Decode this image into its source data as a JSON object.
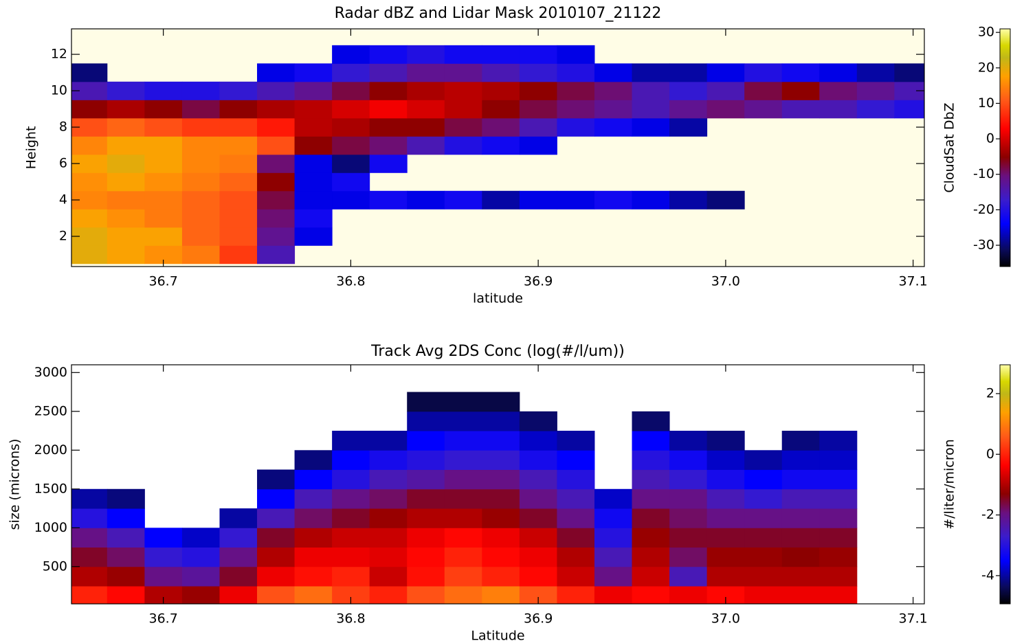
{
  "chart_data": [
    {
      "type": "heatmap",
      "title": "Radar dBZ and Lidar Mask 2010107_21122",
      "xlabel": "latitude",
      "ylabel": "Height",
      "colorbar_label": "CloudSat DbZ",
      "background": "#fffde6",
      "xlim": [
        36.651,
        37.106
      ],
      "xticks": [
        36.7,
        36.8,
        36.9,
        {
          "value": 37,
          "label": "37.0"
        },
        37.1
      ],
      "ylim": [
        0.34,
        13.4
      ],
      "yticks": [
        2,
        4,
        6,
        8,
        10,
        12
      ],
      "clim": [
        -36,
        31
      ],
      "cticks": [
        -30,
        -20,
        -10,
        0,
        10,
        20,
        30
      ],
      "x": [
        36.66,
        36.68,
        36.7,
        36.72,
        36.74,
        36.76,
        36.78,
        36.8,
        36.82,
        36.84,
        36.86,
        36.88,
        36.9,
        36.92,
        36.94,
        36.96,
        36.98,
        37.0,
        37.02,
        37.04,
        37.06,
        37.08,
        37.1
      ],
      "y": [
        1,
        2,
        3,
        4,
        5,
        6,
        7,
        8,
        9,
        10,
        11,
        12
      ],
      "z": [
        [
          20,
          18,
          16,
          14,
          8,
          -15,
          null,
          null,
          null,
          null,
          null,
          null,
          null,
          null,
          null,
          null,
          null,
          null,
          null,
          null,
          null,
          null,
          null
        ],
        [
          20,
          18,
          18,
          12,
          10,
          -12,
          -25,
          null,
          null,
          null,
          null,
          null,
          null,
          null,
          null,
          null,
          null,
          null,
          null,
          null,
          null,
          null,
          null
        ],
        [
          18,
          16,
          14,
          12,
          10,
          -10,
          -22,
          null,
          null,
          null,
          null,
          null,
          null,
          null,
          null,
          null,
          null,
          null,
          null,
          null,
          null,
          null,
          null
        ],
        [
          15,
          14,
          14,
          12,
          10,
          -8,
          -25,
          -25,
          -22,
          -25,
          -22,
          -28,
          -25,
          -25,
          -22,
          -25,
          -28,
          -30,
          null,
          null,
          null,
          null,
          null
        ],
        [
          16,
          18,
          16,
          14,
          12,
          -5,
          -25,
          -22,
          null,
          null,
          null,
          null,
          null,
          null,
          null,
          null,
          null,
          null,
          null,
          null,
          null,
          null,
          null
        ],
        [
          18,
          20,
          18,
          15,
          14,
          -10,
          -25,
          -30,
          -22,
          null,
          null,
          null,
          null,
          null,
          null,
          null,
          null,
          null,
          null,
          null,
          null,
          null,
          null
        ],
        [
          15,
          18,
          18,
          15,
          15,
          10,
          -5,
          -8,
          -10,
          -15,
          -20,
          -22,
          -25,
          null,
          null,
          null,
          null,
          null,
          null,
          null,
          null,
          null,
          null
        ],
        [
          10,
          12,
          10,
          8,
          8,
          5,
          -2,
          -3,
          -5,
          -5,
          -8,
          -10,
          -15,
          -20,
          -22,
          -25,
          -28,
          null,
          null,
          null,
          null,
          null,
          null
        ],
        [
          -5,
          -3,
          -5,
          -8,
          -5,
          -3,
          -2,
          0,
          2,
          0,
          -2,
          -5,
          -8,
          -10,
          -12,
          -15,
          -12,
          -10,
          -12,
          -15,
          -15,
          -18,
          -20
        ],
        [
          -15,
          -18,
          -20,
          -20,
          -18,
          -15,
          -12,
          -8,
          -5,
          -3,
          -2,
          -3,
          -5,
          -8,
          -10,
          -15,
          -18,
          -15,
          -8,
          -5,
          -10,
          -12,
          -15
        ],
        [
          -30,
          null,
          null,
          null,
          null,
          -25,
          -22,
          -18,
          -15,
          -12,
          -12,
          -15,
          -18,
          -20,
          -25,
          -28,
          -28,
          -25,
          -20,
          -22,
          -25,
          -28,
          -30
        ],
        [
          null,
          null,
          null,
          null,
          null,
          null,
          null,
          -25,
          -22,
          -20,
          -22,
          -22,
          -22,
          -25,
          null,
          null,
          null,
          null,
          null,
          null,
          null,
          null,
          null
        ]
      ]
    },
    {
      "type": "heatmap",
      "title": "Track Avg 2DS Conc (log(#/l/um))",
      "xlabel": "Latitude",
      "ylabel": "size (microns)",
      "colorbar_label": "#/liter/micron",
      "background": "#ffffff",
      "xlim": [
        36.651,
        37.106
      ],
      "xticks": [
        36.7,
        36.8,
        36.9,
        {
          "value": 37,
          "label": "37.0"
        },
        37.1
      ],
      "ylim": [
        20,
        3100
      ],
      "yticks": [
        500,
        1000,
        1500,
        2000,
        2500,
        3000
      ],
      "clim": [
        -4.93,
        2.95
      ],
      "cticks": [
        -4,
        -2,
        0,
        2
      ],
      "x": [
        36.66,
        36.68,
        36.7,
        36.72,
        36.74,
        36.76,
        36.78,
        36.8,
        36.82,
        36.84,
        36.86,
        36.88,
        36.9,
        36.92,
        36.94,
        36.96,
        36.98,
        37.0,
        37.02,
        37.04,
        37.06
      ],
      "y": [
        125,
        375,
        625,
        875,
        1125,
        1375,
        1625,
        1875,
        2125,
        2375,
        2625
      ],
      "z": [
        [
          0,
          -0.3,
          -1,
          -1.2,
          -0.5,
          0.5,
          0.8,
          0.3,
          0,
          0.5,
          0.8,
          1,
          0.5,
          0,
          -0.5,
          -0.3,
          -0.5,
          -0.3,
          -0.5,
          -0.5,
          -0.5
        ],
        [
          -1,
          -1.2,
          -2,
          -2.2,
          -1.5,
          -0.5,
          -0.2,
          0,
          -0.8,
          -0.2,
          0.3,
          0,
          -0.3,
          -0.8,
          -2,
          -0.8,
          -2.5,
          -1,
          -1,
          -1,
          -1
        ],
        [
          -1.5,
          -1.8,
          -2.8,
          -3,
          -2,
          -1,
          -0.5,
          -0.5,
          -0.6,
          -0.3,
          0,
          -0.3,
          -0.5,
          -1,
          -2.5,
          -1,
          -1.8,
          -1.2,
          -1.2,
          -1.3,
          -1.2
        ],
        [
          -2,
          -2.5,
          -3.5,
          -3.8,
          -2.8,
          -1.5,
          -1,
          -0.8,
          -0.8,
          -0.5,
          -0.3,
          -0.5,
          -0.8,
          -1.5,
          -3,
          -1.2,
          -1.5,
          -1.5,
          -1.5,
          -1.5,
          -1.5
        ],
        [
          -3,
          -3.5,
          null,
          null,
          -4,
          -2.5,
          -1.8,
          -1.5,
          -1.2,
          -1,
          -1,
          -1.2,
          -1.5,
          -2,
          -3.3,
          -1.5,
          -1.8,
          -2,
          -2,
          -2,
          -2
        ],
        [
          -4,
          -4.2,
          null,
          null,
          null,
          -3.5,
          -2.5,
          -2,
          -1.8,
          -1.5,
          -1.5,
          -1.5,
          -2,
          -2.5,
          -3.8,
          -2,
          -2,
          -2.5,
          -2.8,
          -2.5,
          -2.5
        ],
        [
          null,
          null,
          null,
          null,
          null,
          -4.2,
          -3.5,
          -3,
          -2.5,
          -2.3,
          -2,
          -2,
          -2.5,
          -3,
          null,
          -2.5,
          -2.8,
          -3.2,
          -3.5,
          -3.3,
          -3.3
        ],
        [
          null,
          null,
          null,
          null,
          null,
          null,
          -4.2,
          -3.5,
          -3.2,
          -3,
          -2.8,
          -2.8,
          -3.2,
          -3.5,
          null,
          -3,
          -3.3,
          -3.8,
          -4,
          -3.8,
          -3.8
        ],
        [
          null,
          null,
          null,
          null,
          null,
          null,
          null,
          -4,
          -4,
          -3.5,
          -3.3,
          -3.3,
          -3.8,
          -4,
          null,
          -3.5,
          -4,
          -4.2,
          null,
          -4.2,
          -4
        ],
        [
          null,
          null,
          null,
          null,
          null,
          null,
          null,
          null,
          null,
          -4,
          -4,
          -4,
          -4.3,
          null,
          null,
          -4.3,
          null,
          null,
          null,
          null,
          null
        ],
        [
          null,
          null,
          null,
          null,
          null,
          null,
          null,
          null,
          null,
          -4.5,
          -4.5,
          -4.5,
          null,
          null,
          null,
          null,
          null,
          null,
          null,
          null,
          null
        ]
      ]
    }
  ]
}
